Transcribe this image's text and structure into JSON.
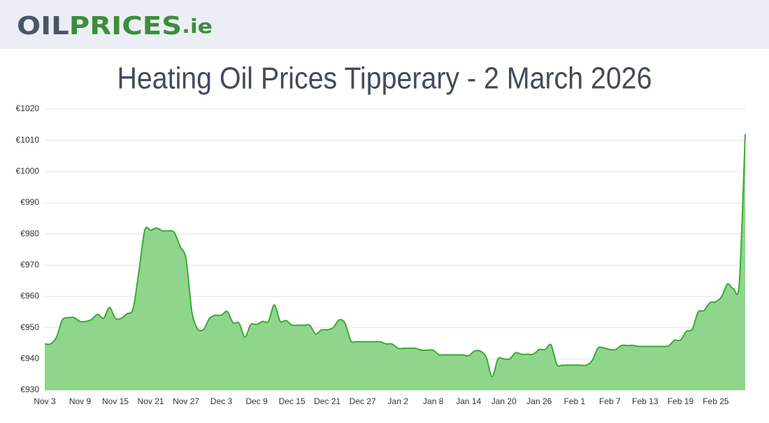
{
  "header": {
    "logo": [
      "OIL",
      "PRICES",
      ".ie"
    ]
  },
  "chart_data": {
    "type": "area",
    "title": "Heating Oil Prices Tipperary - 2 March 2026",
    "categories": [
      "Nov 3",
      null,
      null,
      null,
      null,
      null,
      "Nov 9",
      null,
      null,
      null,
      null,
      null,
      "Nov 15",
      null,
      null,
      null,
      null,
      null,
      "Nov 21",
      null,
      null,
      null,
      null,
      null,
      "Nov 27",
      null,
      null,
      null,
      null,
      null,
      "Dec 3",
      null,
      null,
      null,
      null,
      null,
      "Dec 9",
      null,
      null,
      null,
      null,
      null,
      "Dec 15",
      null,
      null,
      null,
      null,
      null,
      "Dec 21",
      null,
      null,
      null,
      null,
      null,
      "Dec 27",
      null,
      null,
      null,
      null,
      null,
      "Jan 2",
      null,
      null,
      null,
      null,
      null,
      "Jan 8",
      null,
      null,
      null,
      null,
      null,
      "Jan 14",
      null,
      null,
      null,
      null,
      null,
      "Jan 20",
      null,
      null,
      null,
      null,
      null,
      "Jan 26",
      null,
      null,
      null,
      null,
      null,
      "Feb 1",
      null,
      null,
      null,
      null,
      null,
      "Feb 7",
      null,
      null,
      null,
      null,
      null,
      "Feb 13",
      null,
      null,
      null,
      null,
      null,
      "Feb 19",
      null,
      null,
      null,
      null,
      null,
      "Feb 25",
      null,
      null,
      null,
      null,
      null
    ],
    "values": [
      944.8,
      944.8,
      947,
      952.5,
      953.2,
      953.2,
      952,
      952,
      952.7,
      954.3,
      953,
      956.5,
      953,
      953,
      954.5,
      956,
      968,
      981.3,
      981.2,
      981.9,
      981,
      981,
      980.5,
      976,
      972,
      955,
      949.5,
      949.5,
      953,
      954,
      954,
      955.2,
      951.5,
      951.5,
      947,
      951,
      951,
      952,
      952,
      957.3,
      952,
      952.3,
      950.8,
      950.8,
      950.8,
      950.8,
      948,
      949.3,
      949.3,
      950,
      952.5,
      951.5,
      945.8,
      945.5,
      945.5,
      945.5,
      945.5,
      945.5,
      944.8,
      944.8,
      943.4,
      943.4,
      943.4,
      943.4,
      942.8,
      942.8,
      942.8,
      941.3,
      941.3,
      941.3,
      941.3,
      941.3,
      941,
      942.5,
      942.5,
      940.5,
      934.3,
      940,
      940,
      940,
      942,
      941.5,
      941.5,
      941.5,
      943,
      943,
      944.5,
      938.2,
      938,
      938,
      938,
      938,
      938,
      939.5,
      943.5,
      943.5,
      943,
      943,
      944.3,
      944.3,
      944.3,
      944,
      944,
      944,
      944,
      944,
      944.2,
      946,
      946,
      948.8,
      949.5,
      955,
      955.5,
      958,
      958.3,
      960,
      964,
      962.5,
      964.5,
      1012
    ],
    "color": "#3aaa35",
    "fill": "#8fd68c",
    "ylim": [
      930,
      1020
    ],
    "yticks": [
      {
        "value": 930,
        "label": "€930"
      },
      {
        "value": 940,
        "label": "€940"
      },
      {
        "value": 950,
        "label": "€950"
      },
      {
        "value": 960,
        "label": "€960"
      },
      {
        "value": 970,
        "label": "€970"
      },
      {
        "value": 980,
        "label": "€980"
      },
      {
        "value": 990,
        "label": "€990"
      },
      {
        "value": 1000,
        "label": "€1000"
      },
      {
        "value": 1010,
        "label": "€1010"
      },
      {
        "value": 1020,
        "label": "€1020"
      }
    ],
    "grid": true
  }
}
